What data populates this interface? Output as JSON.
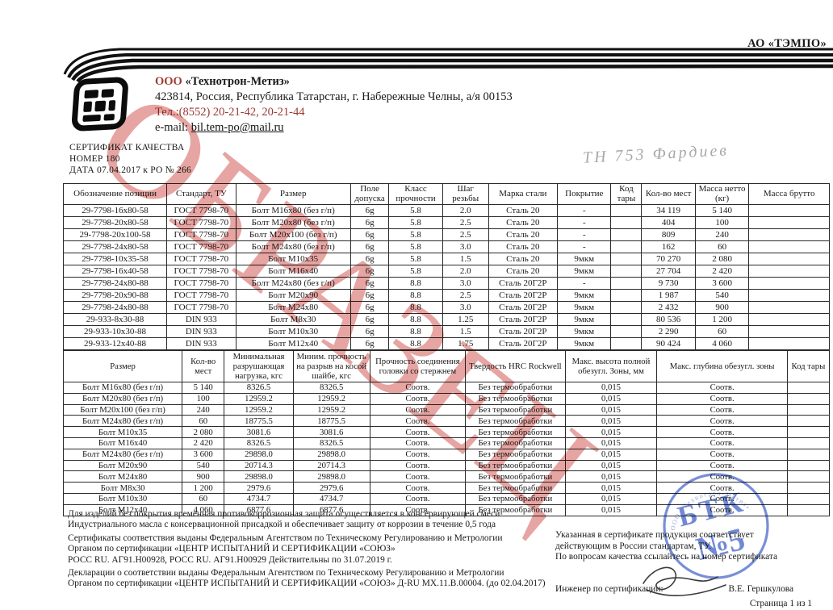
{
  "page": {
    "org_top_right": "АО «ТЭМПО»",
    "page_footer": "Страница 1 из 1"
  },
  "company": {
    "prefix": "ООО",
    "name": " «Технотрон-Метиз»",
    "address": "423814, Россия, Республика Татарстан,  г. Набережные Челны, а/я 00153",
    "phone": "Тел.:(8552) 20-21-42, 20-21-44",
    "email_label": "e-mail: ",
    "email": "bil.tem-po@mail.ru"
  },
  "certificate": {
    "title": "СЕРТИФИКАТ КАЧЕСТВА",
    "number_line": "НОМЕР 180",
    "date_line": "ДАТА 07.04.2017  к РО № 266"
  },
  "handwritten_note": "ТН 753   Фардиев",
  "watermark": {
    "text": "ОБРАЗЕЦ",
    "color": "#cd4b46"
  },
  "table1": {
    "headers": [
      "Обозначение позиции",
      "Стандарт, ТУ",
      "Размер",
      "Поле допуска",
      "Класс прочности",
      "Шаг резьбы",
      "Марка стали",
      "Покрытие",
      "Код тары",
      "Кол-во мест",
      "Масса нетто (кг)",
      "Масса брутто"
    ],
    "rows": [
      [
        "29-7798-16x80-58",
        "ГОСТ 7798-70",
        "Болт М16х80 (без г/п)",
        "6g",
        "5.8",
        "2.0",
        "Сталь 20",
        "-",
        "",
        "34 119",
        "5 140",
        ""
      ],
      [
        "29-7798-20x80-58",
        "ГОСТ 7798-70",
        "Болт М20х80 (без г/п)",
        "6g",
        "5.8",
        "2.5",
        "Сталь 20",
        "-",
        "",
        "404",
        "100",
        ""
      ],
      [
        "29-7798-20x100-58",
        "ГОСТ 7798-70",
        "Болт М20х100 (без г/п)",
        "6g",
        "5.8",
        "2.5",
        "Сталь 20",
        "-",
        "",
        "809",
        "240",
        ""
      ],
      [
        "29-7798-24x80-58",
        "ГОСТ 7798-70",
        "Болт М24х80 (без г/п)",
        "6g",
        "5.8",
        "3.0",
        "Сталь 20",
        "-",
        "",
        "162",
        "60",
        ""
      ],
      [
        "29-7798-10x35-58",
        "ГОСТ 7798-70",
        "Болт М10х35",
        "6g",
        "5.8",
        "1.5",
        "Сталь 20",
        "9мкм",
        "",
        "70 270",
        "2 080",
        ""
      ],
      [
        "29-7798-16x40-58",
        "ГОСТ 7798-70",
        "Болт М16х40",
        "6g",
        "5.8",
        "2.0",
        "Сталь 20",
        "9мкм",
        "",
        "27 704",
        "2 420",
        ""
      ],
      [
        "29-7798-24x80-88",
        "ГОСТ 7798-70",
        "Болт М24х80 (без г/п)",
        "6g",
        "8.8",
        "3.0",
        "Сталь 20Г2Р",
        "-",
        "",
        "9 730",
        "3 600",
        ""
      ],
      [
        "29-7798-20x90-88",
        "ГОСТ 7798-70",
        "Болт М20х90",
        "6g",
        "8.8",
        "2.5",
        "Сталь 20Г2Р",
        "9мкм",
        "",
        "1 987",
        "540",
        ""
      ],
      [
        "29-7798-24x80-88",
        "ГОСТ 7798-70",
        "Болт М24х80",
        "6g",
        "8.8",
        "3.0",
        "Сталь 20Г2Р",
        "9мкм",
        "",
        "2 432",
        "900",
        ""
      ],
      [
        "29-933-8x30-88",
        "DIN 933",
        "Болт М8х30",
        "6g",
        "8.8",
        "1.25",
        "Сталь 20Г2Р",
        "9мкм",
        "",
        "80 536",
        "1 200",
        ""
      ],
      [
        "29-933-10x30-88",
        "DIN 933",
        "Болт М10х30",
        "6g",
        "8.8",
        "1.5",
        "Сталь 20Г2Р",
        "9мкм",
        "",
        "2 290",
        "60",
        ""
      ],
      [
        "29-933-12x40-88",
        "DIN 933",
        "Болт М12х40",
        "6g",
        "8.8",
        "1.75",
        "Сталь 20Г2Р",
        "9мкм",
        "",
        "90 424",
        "4 060",
        ""
      ]
    ]
  },
  "table2": {
    "headers": [
      "Размер",
      "Кол-во мест",
      "Минимальная разрушающая нагрузка, кгс",
      "Миним. прочность на разрыв на косой шайбе, кгс",
      "Прочность соединения головки со стержнем",
      "Твердость HRC Rockwell",
      "Макс. высота полной обезугл. Зоны, мм",
      "Макс. глубина обезугл. зоны",
      "Код тары"
    ],
    "rows": [
      [
        "Болт М16х80 (без г/п)",
        "5 140",
        "8326.5",
        "8326.5",
        "Соотв.",
        "Без термообработки",
        "0,015",
        "Соотв.",
        ""
      ],
      [
        "Болт М20х80 (без г/п)",
        "100",
        "12959.2",
        "12959.2",
        "Соотв.",
        "Без термообработки",
        "0,015",
        "Соотв.",
        ""
      ],
      [
        "Болт М20х100 (без г/п)",
        "240",
        "12959.2",
        "12959.2",
        "Соотв.",
        "Без термообработки",
        "0,015",
        "Соотв.",
        ""
      ],
      [
        "Болт М24х80 (без г/п)",
        "60",
        "18775.5",
        "18775.5",
        "Соотв.",
        "Без термообработки",
        "0,015",
        "Соотв.",
        ""
      ],
      [
        "Болт М10х35",
        "2 080",
        "3081.6",
        "3081.6",
        "Соотв.",
        "Без термообработки",
        "0,015",
        "Соотв.",
        ""
      ],
      [
        "Болт М16х40",
        "2 420",
        "8326.5",
        "8326.5",
        "Соотв.",
        "Без термообработки",
        "0,015",
        "Соотв.",
        ""
      ],
      [
        "Болт М24х80 (без г/п)",
        "3 600",
        "29898.0",
        "29898.0",
        "Соотв.",
        "Без термообработки",
        "0,015",
        "Соотв.",
        ""
      ],
      [
        "Болт М20х90",
        "540",
        "20714.3",
        "20714.3",
        "Соотв.",
        "Без термообработки",
        "0,015",
        "Соотв.",
        ""
      ],
      [
        "Болт М24х80",
        "900",
        "29898.0",
        "29898.0",
        "Соотв.",
        "Без термообработки",
        "0,015",
        "Соотв.",
        ""
      ],
      [
        "Болт М8х30",
        "1 200",
        "2979.6",
        "2979.6",
        "Соотв.",
        "Без термообработки",
        "0,015",
        "Соотв.",
        ""
      ],
      [
        "Болт М10х30",
        "60",
        "4734.7",
        "4734.7",
        "Соотв.",
        "Без термообработки",
        "0,015",
        "Соотв.",
        ""
      ],
      [
        "Болт М12х40",
        "4 060",
        "6877.6",
        "6877.6",
        "Соотв.",
        "Без термообработки",
        "0,015",
        "Соотв.",
        ""
      ]
    ]
  },
  "notes_left": {
    "line1": "Для изделий без покрытия временная противокоррозионная защита осуществляется в консервирующей смеси",
    "line2": "Индустриального масла с консервационной присадкой и обеспечивает защиту от коррозии в течение 0,5 года",
    "line3": "Сертификаты соответствия выданы Федеральным Агентством по Техническому Регулированию и Метрологии",
    "line4": "Органом по сертификации «ЦЕНТР ИСПЫТАНИЙ И СЕРТИФИКАЦИИ «СОЮЗ»",
    "line5": "РОСС RU. АГ91.Н00928,  РОСС RU. АГ91.Н00929 Действительны по 31.07.2019 г.",
    "line6": "Декларации о соответствии выданы Федеральным Агентством по Техническому Регулированию и Метрологии",
    "line7": "Органом по сертификации «ЦЕНТР ИСПЫТАНИЙ И СЕРТИФИКАЦИИ «СОЮЗ» Д-RU МХ.11.В.00004. (до 02.04.2017)"
  },
  "notes_right": {
    "line1": "Указанная в сертификате продукция соответствует",
    "line2": "действующим в России стандартам, ТУ.",
    "line3": "По вопросам качества ссылайтесь на номер сертификата",
    "engineer_label": "Инженер по сертификации:",
    "engineer_name": "В.Е. Гершкулова"
  },
  "stamp": {
    "ring_text": "ООО «Технотрон-Метиз»",
    "big": "БТК",
    "number": "№5",
    "color": "#5673cd"
  }
}
